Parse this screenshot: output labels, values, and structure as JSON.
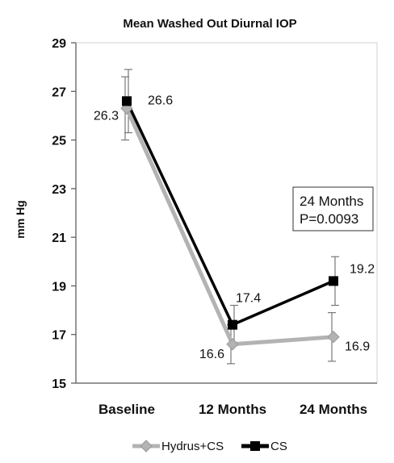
{
  "chart_data": {
    "type": "line",
    "title": "Mean Washed Out Diurnal IOP",
    "ylabel": "mm Hg",
    "xlabel": "",
    "categories": [
      "Baseline",
      "12 Months",
      "24 Months"
    ],
    "ylim": [
      15,
      29
    ],
    "yticks": [
      15,
      17,
      19,
      21,
      23,
      25,
      27,
      29
    ],
    "grid": false,
    "legend_position": "bottom",
    "series": [
      {
        "name": "Hydrus+CS",
        "values": [
          26.3,
          16.6,
          16.9
        ],
        "labels": [
          "26.3",
          "16.6",
          "16.9"
        ],
        "error": [
          1.3,
          0.8,
          1.0
        ],
        "color": "#b3b3b3",
        "marker": "diamond"
      },
      {
        "name": "CS",
        "values": [
          26.6,
          17.4,
          19.2
        ],
        "labels": [
          "26.6",
          "17.4",
          "19.2"
        ],
        "error": [
          1.3,
          0.8,
          1.0
        ],
        "color": "#000000",
        "marker": "square"
      }
    ],
    "annotation": {
      "line1": "24 Months",
      "line2": "P=0.0093"
    }
  }
}
